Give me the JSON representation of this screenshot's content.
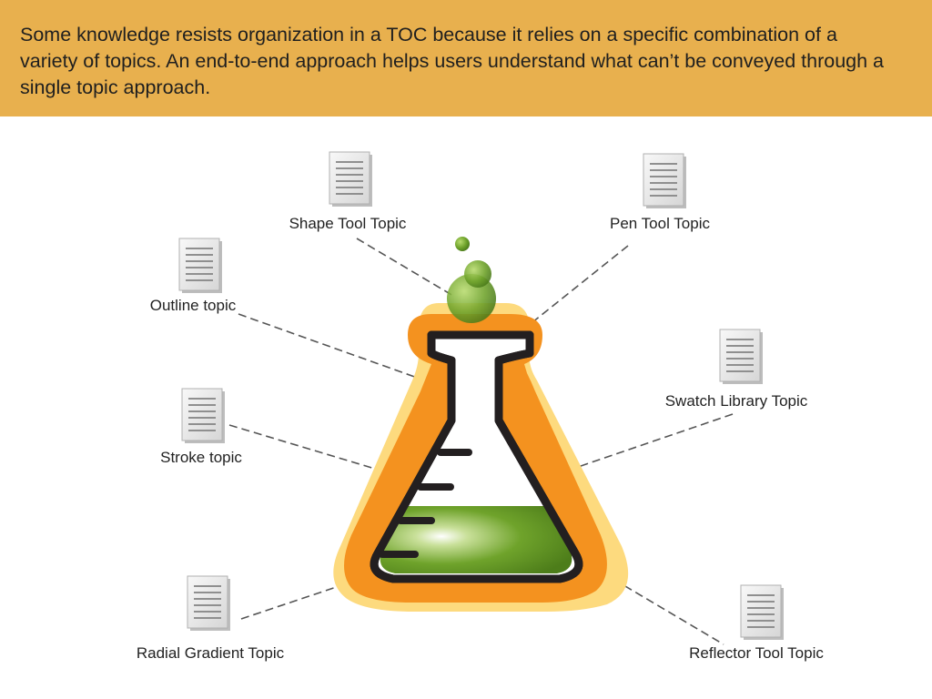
{
  "intro": {
    "text": "Some knowledge resists organization in a TOC because it relies on a specific combination of a variety of topics. An end-to-end approach helps users understand what can’t be conveyed through a single topic approach."
  },
  "topics": [
    {
      "id": "shape-tool",
      "label": "Shape Tool Topic",
      "icon": "document-icon"
    },
    {
      "id": "pen-tool",
      "label": "Pen Tool Topic",
      "icon": "document-icon"
    },
    {
      "id": "outline",
      "label": "Outline topic",
      "icon": "document-icon"
    },
    {
      "id": "swatch-library",
      "label": "Swatch Library Topic",
      "icon": "document-icon"
    },
    {
      "id": "stroke",
      "label": "Stroke topic",
      "icon": "document-icon"
    },
    {
      "id": "radial-gradient",
      "label": "Radial Gradient Topic",
      "icon": "document-icon"
    },
    {
      "id": "reflector-tool",
      "label": "Reflector Tool Topic",
      "icon": "document-icon"
    }
  ],
  "central_icon": "beaker-flask-icon",
  "colors": {
    "banner": "#E8B04E",
    "flask_outer": "#FDDA7E",
    "flask_orange": "#F4921F",
    "flask_outline": "#231F20",
    "liquid": "#6FA32B",
    "connector": "#555555"
  }
}
